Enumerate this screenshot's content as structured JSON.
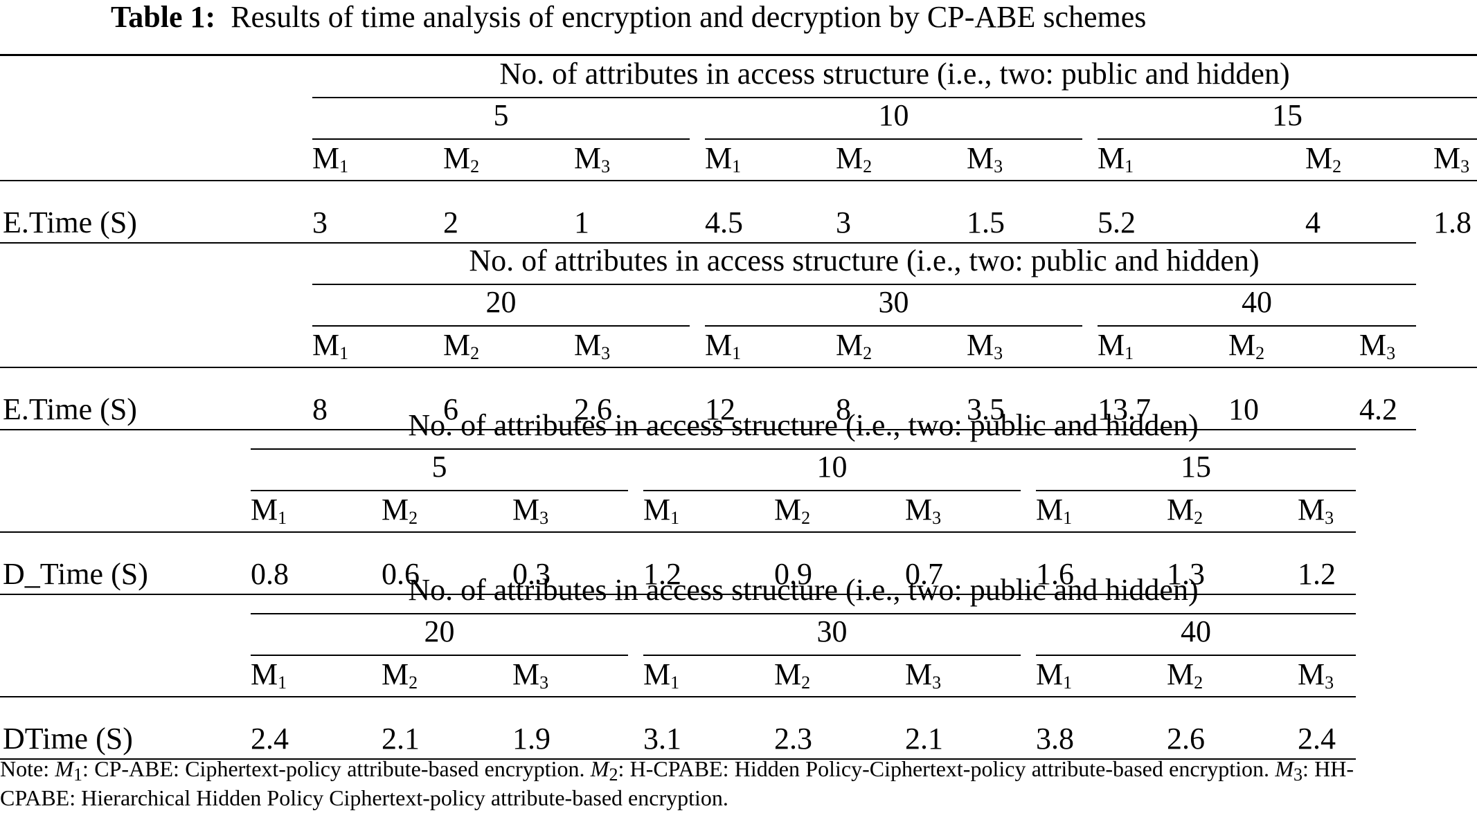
{
  "caption": {
    "label": "Table 1:",
    "text": "Results of time analysis of encryption and decryption by CP-ABE schemes"
  },
  "spanner": "No. of attributes in access structure (i.e., two: public and hidden)",
  "method_prefix": "M",
  "method_subscripts": [
    "1",
    "2",
    "3"
  ],
  "blocks": [
    {
      "row_label": "E.Time (S)",
      "groups": [
        {
          "attributes": "5",
          "values": [
            "3",
            "2",
            "1"
          ]
        },
        {
          "attributes": "10",
          "values": [
            "4.5",
            "3",
            "1.5"
          ]
        },
        {
          "attributes": "15",
          "values": [
            "5.2",
            "4",
            "1.8"
          ]
        }
      ]
    },
    {
      "row_label": "E.Time (S)",
      "groups": [
        {
          "attributes": "20",
          "values": [
            "8",
            "6",
            "2.6"
          ]
        },
        {
          "attributes": "30",
          "values": [
            "12",
            "8",
            "3.5"
          ]
        },
        {
          "attributes": "40",
          "values": [
            "13.7",
            "10",
            "4.2"
          ]
        }
      ]
    },
    {
      "row_label": "D_Time (S)",
      "groups": [
        {
          "attributes": "5",
          "values": [
            "0.8",
            "0.6",
            "0.3"
          ]
        },
        {
          "attributes": "10",
          "values": [
            "1.2",
            "0.9",
            "0.7"
          ]
        },
        {
          "attributes": "15",
          "values": [
            "1.6",
            "1.3",
            "1.2"
          ]
        }
      ]
    },
    {
      "row_label": "DTime (S)",
      "groups": [
        {
          "attributes": "20",
          "values": [
            "2.4",
            "2.1",
            "1.9"
          ]
        },
        {
          "attributes": "30",
          "values": [
            "3.1",
            "2.3",
            "2.1"
          ]
        },
        {
          "attributes": "40",
          "values": [
            "3.8",
            "2.6",
            "2.4"
          ]
        }
      ]
    }
  ],
  "note": {
    "prefix": "Note:",
    "items": [
      {
        "symbol": "M",
        "sub": "1",
        "text": ": CP-ABE: Ciphertext-policy attribute-based encryption."
      },
      {
        "symbol": "M",
        "sub": "2",
        "text": ": H-CPABE: Hidden Policy-Ciphertext-policy attribute-based encryption."
      },
      {
        "symbol": "M",
        "sub": "3",
        "text": ": HH-CPABE: Hierarchical Hidden Policy Ciphertext-policy attribute-based encryption."
      }
    ]
  }
}
